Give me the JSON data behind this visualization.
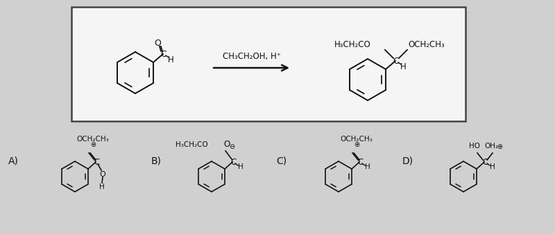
{
  "bg_color": "#d0d0d0",
  "box_color": "#f5f5f5",
  "box_border": "#444444",
  "text_color": "#111111",
  "reagent_text": "CH₃CH₂OH, H⁺",
  "option_labels": [
    "A)",
    "B)",
    "C)",
    "D)"
  ]
}
